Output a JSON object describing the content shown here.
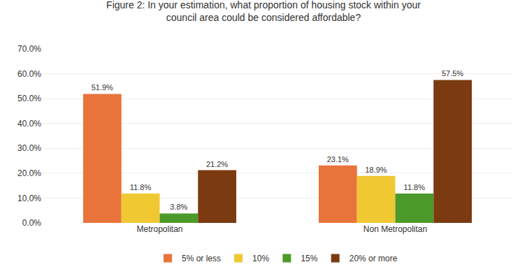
{
  "chart_data": {
    "type": "bar",
    "title": "Figure 2: In your estimation, what proportion of housing stock within your\ncouncil area could be considered affordable?",
    "categories": [
      "Metropolitan",
      "Non Metropolitan"
    ],
    "series": [
      {
        "name": "5% or less",
        "color": "#E8743B",
        "values": [
          51.9,
          23.1
        ],
        "value_labels": [
          "51.9%",
          "23.1%"
        ]
      },
      {
        "name": "10%",
        "color": "#F0C832",
        "values": [
          11.8,
          18.9
        ],
        "value_labels": [
          "11.8%",
          "18.9%"
        ]
      },
      {
        "name": "15%",
        "color": "#4C9A2A",
        "values": [
          3.8,
          11.8
        ],
        "value_labels": [
          "3.8%",
          "11.8%"
        ]
      },
      {
        "name": "20% or more",
        "color": "#7B3A10",
        "values": [
          21.2,
          57.5
        ],
        "value_labels": [
          "21.2%",
          "57.5%"
        ]
      }
    ],
    "ylim": [
      0,
      70
    ],
    "yticks": [
      {
        "value": 0,
        "label": "0.0%"
      },
      {
        "value": 10,
        "label": "10.0%"
      },
      {
        "value": 20,
        "label": "20.0%"
      },
      {
        "value": 30,
        "label": "30.0%"
      },
      {
        "value": 40,
        "label": "40.0%"
      },
      {
        "value": 50,
        "label": "50.0%"
      },
      {
        "value": 60,
        "label": "60.0%"
      },
      {
        "value": 70,
        "label": "70.0%"
      }
    ],
    "grid": true,
    "legend": "bottom",
    "data_labels": true
  }
}
